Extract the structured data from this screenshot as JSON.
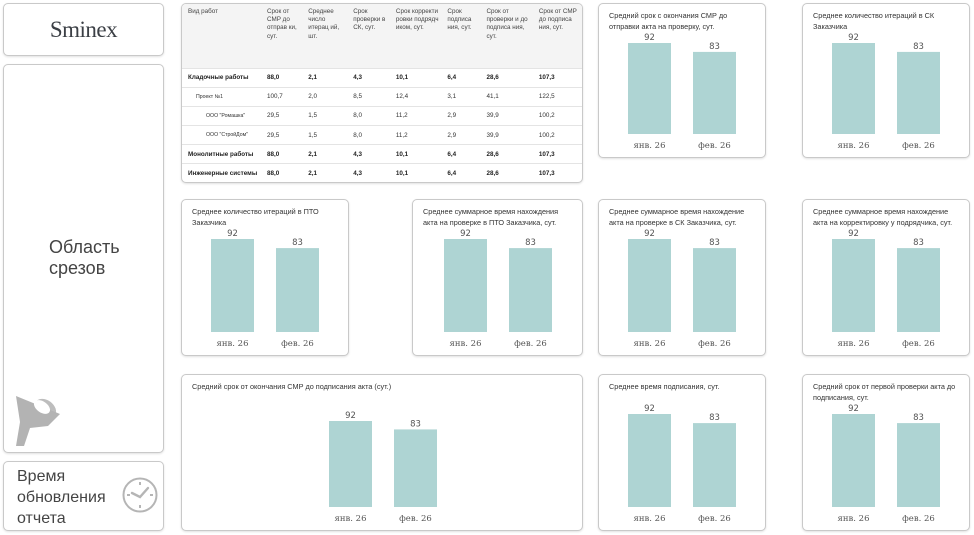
{
  "logo": {
    "text": "Sminex"
  },
  "slicer": {
    "label_line1": "Область",
    "label_line2": "срезов",
    "icon": "funnel-icon"
  },
  "update_time": {
    "label_line1": "Время",
    "label_line2": "обновления",
    "label_line3": "отчета",
    "icon": "clock-icon"
  },
  "colors": {
    "bar": "#aed4d3",
    "border": "#c9c9c9",
    "header_bg": "#f4f4f4"
  },
  "table": {
    "headers": [
      "Вид работ",
      "Срок от СМР до отправ ки, сут.",
      "Среднее число итерац ий, шт.",
      "Срок проверки в СК, сут.",
      "Срок корректи ровки подрядч иком, сут.",
      "Срок подписа ния, сут.",
      "Срок от проверки и до подписа ния, сут.",
      "Срок от СМР до подписа ния, сут."
    ],
    "rows": [
      {
        "level": 0,
        "cells": [
          "Кладочные работы",
          "88,0",
          "2,1",
          "4,3",
          "10,1",
          "6,4",
          "28,6",
          "107,3"
        ]
      },
      {
        "level": 1,
        "cells": [
          "Проект №1",
          "100,7",
          "2,0",
          "8,5",
          "12,4",
          "3,1",
          "41,1",
          "122,5"
        ]
      },
      {
        "level": 2,
        "cells": [
          "ООО \"Ромашка\"",
          "29,5",
          "1,5",
          "8,0",
          "11,2",
          "2,9",
          "39,9",
          "100,2"
        ]
      },
      {
        "level": 2,
        "cells": [
          "ООО \"СтройДом\"",
          "29,5",
          "1,5",
          "8,0",
          "11,2",
          "2,9",
          "39,9",
          "100,2"
        ]
      },
      {
        "level": 0,
        "cells": [
          "Монолитные работы",
          "88,0",
          "2,1",
          "4,3",
          "10,1",
          "6,4",
          "28,6",
          "107,3"
        ]
      },
      {
        "level": 0,
        "cells": [
          "Инженерные системы",
          "88,0",
          "2,1",
          "4,3",
          "10,1",
          "6,4",
          "28,6",
          "107,3"
        ]
      }
    ]
  },
  "chart_data": [
    {
      "id": "c1",
      "type": "bar",
      "title": "Средний срок с окончания СМР до отправки акта на проверку, сут.",
      "categories": [
        "янв. 26",
        "фев. 26"
      ],
      "values": [
        92,
        83
      ],
      "ylim": [
        0,
        92
      ]
    },
    {
      "id": "c2",
      "type": "bar",
      "title": "Среднее количество итераций в СК Заказчика",
      "categories": [
        "янв. 26",
        "фев. 26"
      ],
      "values": [
        92,
        83
      ],
      "ylim": [
        0,
        92
      ]
    },
    {
      "id": "c3",
      "type": "bar",
      "title": "Среднее количество итераций в ПТО Заказчика",
      "categories": [
        "янв. 26",
        "фев. 26"
      ],
      "values": [
        92,
        83
      ],
      "ylim": [
        0,
        92
      ]
    },
    {
      "id": "c4",
      "type": "bar",
      "title": "Среднее суммарное время нахождения акта на проверке в ПТО Заказчика, сут.",
      "categories": [
        "янв. 26",
        "фев. 26"
      ],
      "values": [
        92,
        83
      ],
      "ylim": [
        0,
        92
      ]
    },
    {
      "id": "c5",
      "type": "bar",
      "title": "Среднее суммарное время нахождение акта на проверке в СК Заказчика, сут.",
      "categories": [
        "янв. 26",
        "фев. 26"
      ],
      "values": [
        92,
        83
      ],
      "ylim": [
        0,
        92
      ]
    },
    {
      "id": "c6",
      "type": "bar",
      "title": "Среднее суммарное время нахождение акта на корректировку у подрядчика, сут.",
      "categories": [
        "янв. 26",
        "фев. 26"
      ],
      "values": [
        92,
        83
      ],
      "ylim": [
        0,
        92
      ]
    },
    {
      "id": "c7",
      "type": "bar",
      "title": "Средний срок от окончания СМР до подписания акта (сут.)",
      "categories": [
        "янв. 26",
        "фев. 26"
      ],
      "values": [
        92,
        83
      ],
      "ylim": [
        0,
        92
      ]
    },
    {
      "id": "c8",
      "type": "bar",
      "title": "Среднее время подписания, сут.",
      "categories": [
        "янв. 26",
        "фев. 26"
      ],
      "values": [
        92,
        83
      ],
      "ylim": [
        0,
        92
      ]
    },
    {
      "id": "c9",
      "type": "bar",
      "title": "Средний срок от первой проверки акта до подписания, сут.",
      "categories": [
        "янв. 26",
        "фев. 26"
      ],
      "values": [
        92,
        83
      ],
      "ylim": [
        0,
        92
      ]
    }
  ]
}
